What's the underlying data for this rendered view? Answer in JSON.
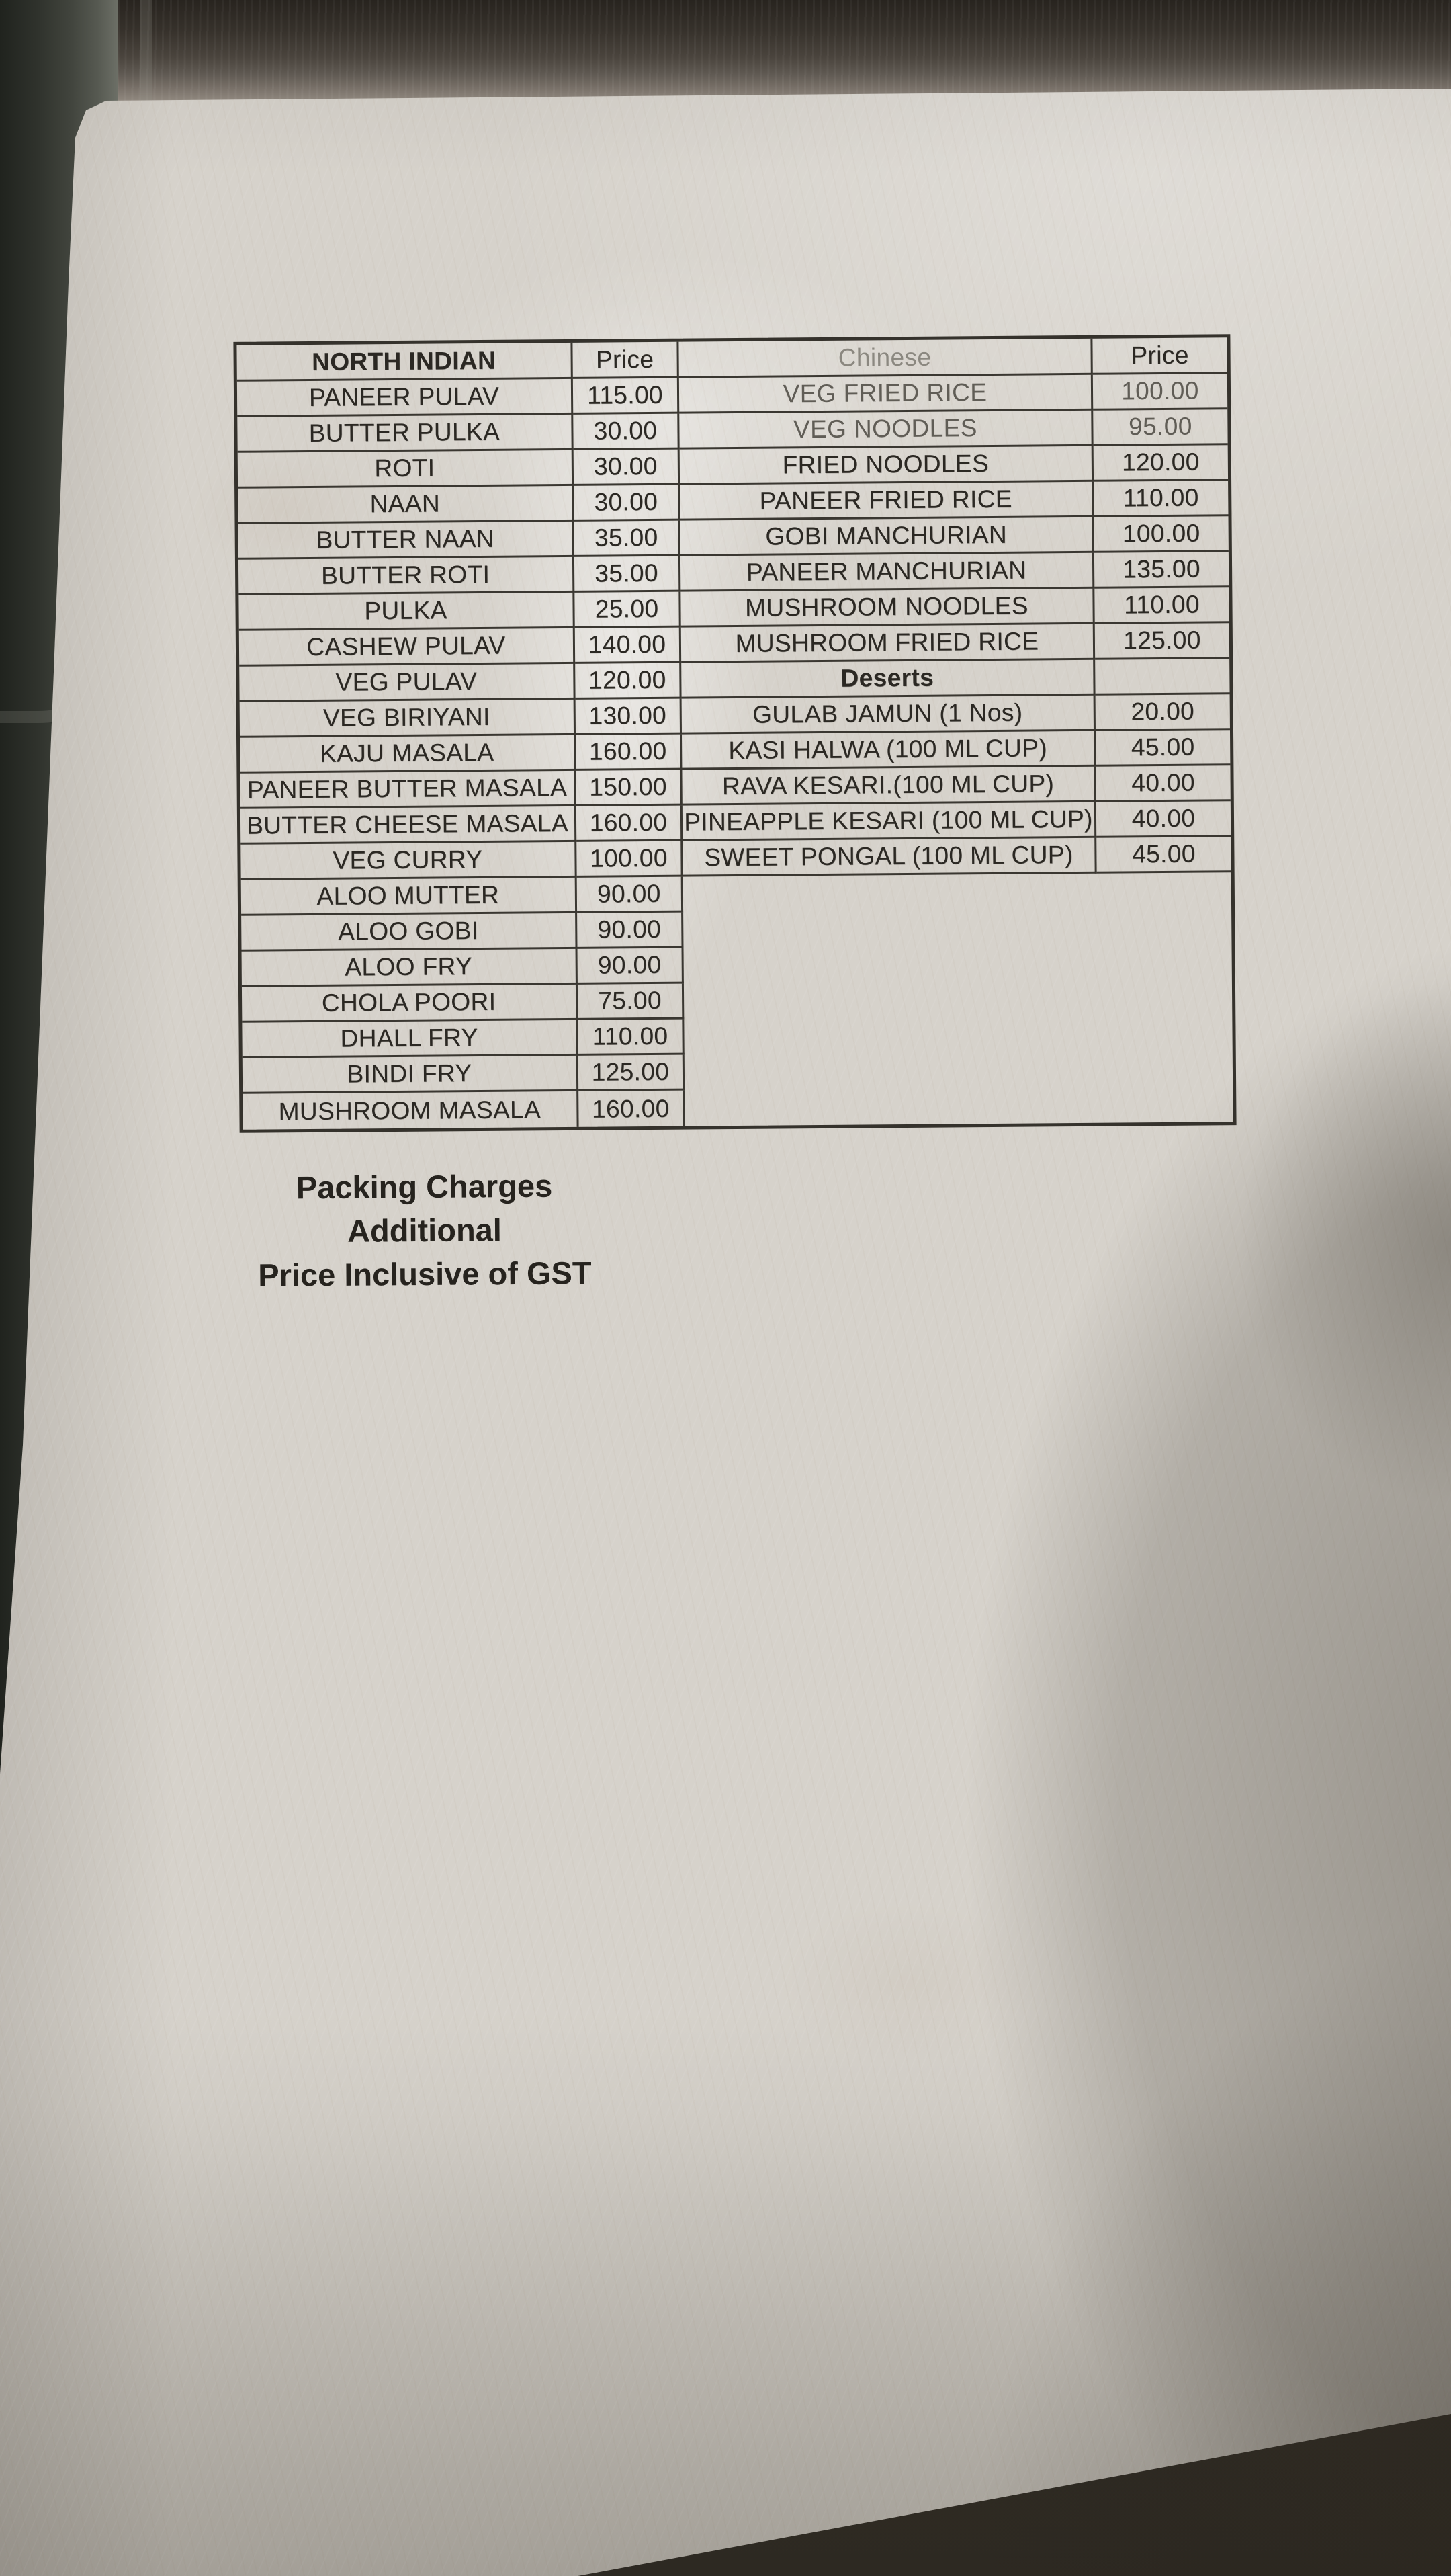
{
  "menu": {
    "header": {
      "north_indian": "NORTH INDIAN",
      "price_left": "Price",
      "chinese": "Chinese",
      "price_right": "Price"
    },
    "north_indian": {
      "items": [
        {
          "name": "PANEER PULAV",
          "price": "115.00"
        },
        {
          "name": "BUTTER PULKA",
          "price": "30.00"
        },
        {
          "name": "ROTI",
          "price": "30.00"
        },
        {
          "name": "NAAN",
          "price": "30.00"
        },
        {
          "name": "BUTTER NAAN",
          "price": "35.00"
        },
        {
          "name": "BUTTER ROTI",
          "price": "35.00"
        },
        {
          "name": "PULKA",
          "price": "25.00"
        },
        {
          "name": "CASHEW PULAV",
          "price": "140.00"
        },
        {
          "name": "VEG PULAV",
          "price": "120.00"
        },
        {
          "name": "VEG BIRIYANI",
          "price": "130.00"
        },
        {
          "name": "KAJU MASALA",
          "price": "160.00"
        },
        {
          "name": "PANEER BUTTER MASALA",
          "price": "150.00"
        },
        {
          "name": "BUTTER CHEESE MASALA",
          "price": "160.00"
        },
        {
          "name": "VEG CURRY",
          "price": "100.00"
        },
        {
          "name": "ALOO MUTTER",
          "price": "90.00"
        },
        {
          "name": "ALOO GOBI",
          "price": "90.00"
        },
        {
          "name": "ALOO FRY",
          "price": "90.00"
        },
        {
          "name": "CHOLA POORI",
          "price": "75.00"
        },
        {
          "name": "DHALL FRY",
          "price": "110.00"
        },
        {
          "name": "BINDI FRY",
          "price": "125.00"
        },
        {
          "name": "MUSHROOM MASALA",
          "price": "160.00"
        }
      ]
    },
    "chinese": {
      "items": [
        {
          "name": "VEG FRIED RICE",
          "price": "100.00",
          "faded": true
        },
        {
          "name": "VEG NOODLES",
          "price": "95.00",
          "faded": true
        },
        {
          "name": "FRIED NOODLES",
          "price": "120.00",
          "faded": false
        },
        {
          "name": "PANEER FRIED RICE",
          "price": "110.00",
          "faded": false
        },
        {
          "name": "GOBI MANCHURIAN",
          "price": "100.00",
          "faded": false
        },
        {
          "name": "PANEER MANCHURIAN",
          "price": "135.00",
          "faded": false
        },
        {
          "name": "MUSHROOM NOODLES",
          "price": "110.00",
          "faded": false
        },
        {
          "name": "MUSHROOM FRIED RICE",
          "price": "125.00",
          "faded": false
        }
      ]
    },
    "deserts": {
      "header": "Deserts",
      "items": [
        {
          "name": "GULAB JAMUN (1 Nos)",
          "price": "20.00"
        },
        {
          "name": "KASI HALWA (100 ML CUP)",
          "price": "45.00"
        },
        {
          "name": "RAVA KESARI.(100 ML CUP)",
          "price": "40.00"
        },
        {
          "name": "PINEAPPLE KESARI (100 ML CUP)",
          "price": "40.00"
        },
        {
          "name": "SWEET PONGAL (100 ML CUP)",
          "price": "45.00"
        }
      ]
    },
    "footer": {
      "line1": "Packing Charges Additional",
      "line2": "Price Inclusive of GST"
    }
  },
  "colors": {
    "paper": "#d6d2cb",
    "ink": "#2b2823",
    "table_border": "#35322c",
    "faded_ink": "#8b8880",
    "metal_top": "#3a342e",
    "tray_left": "#3c3f38",
    "floor": "#322d25"
  }
}
